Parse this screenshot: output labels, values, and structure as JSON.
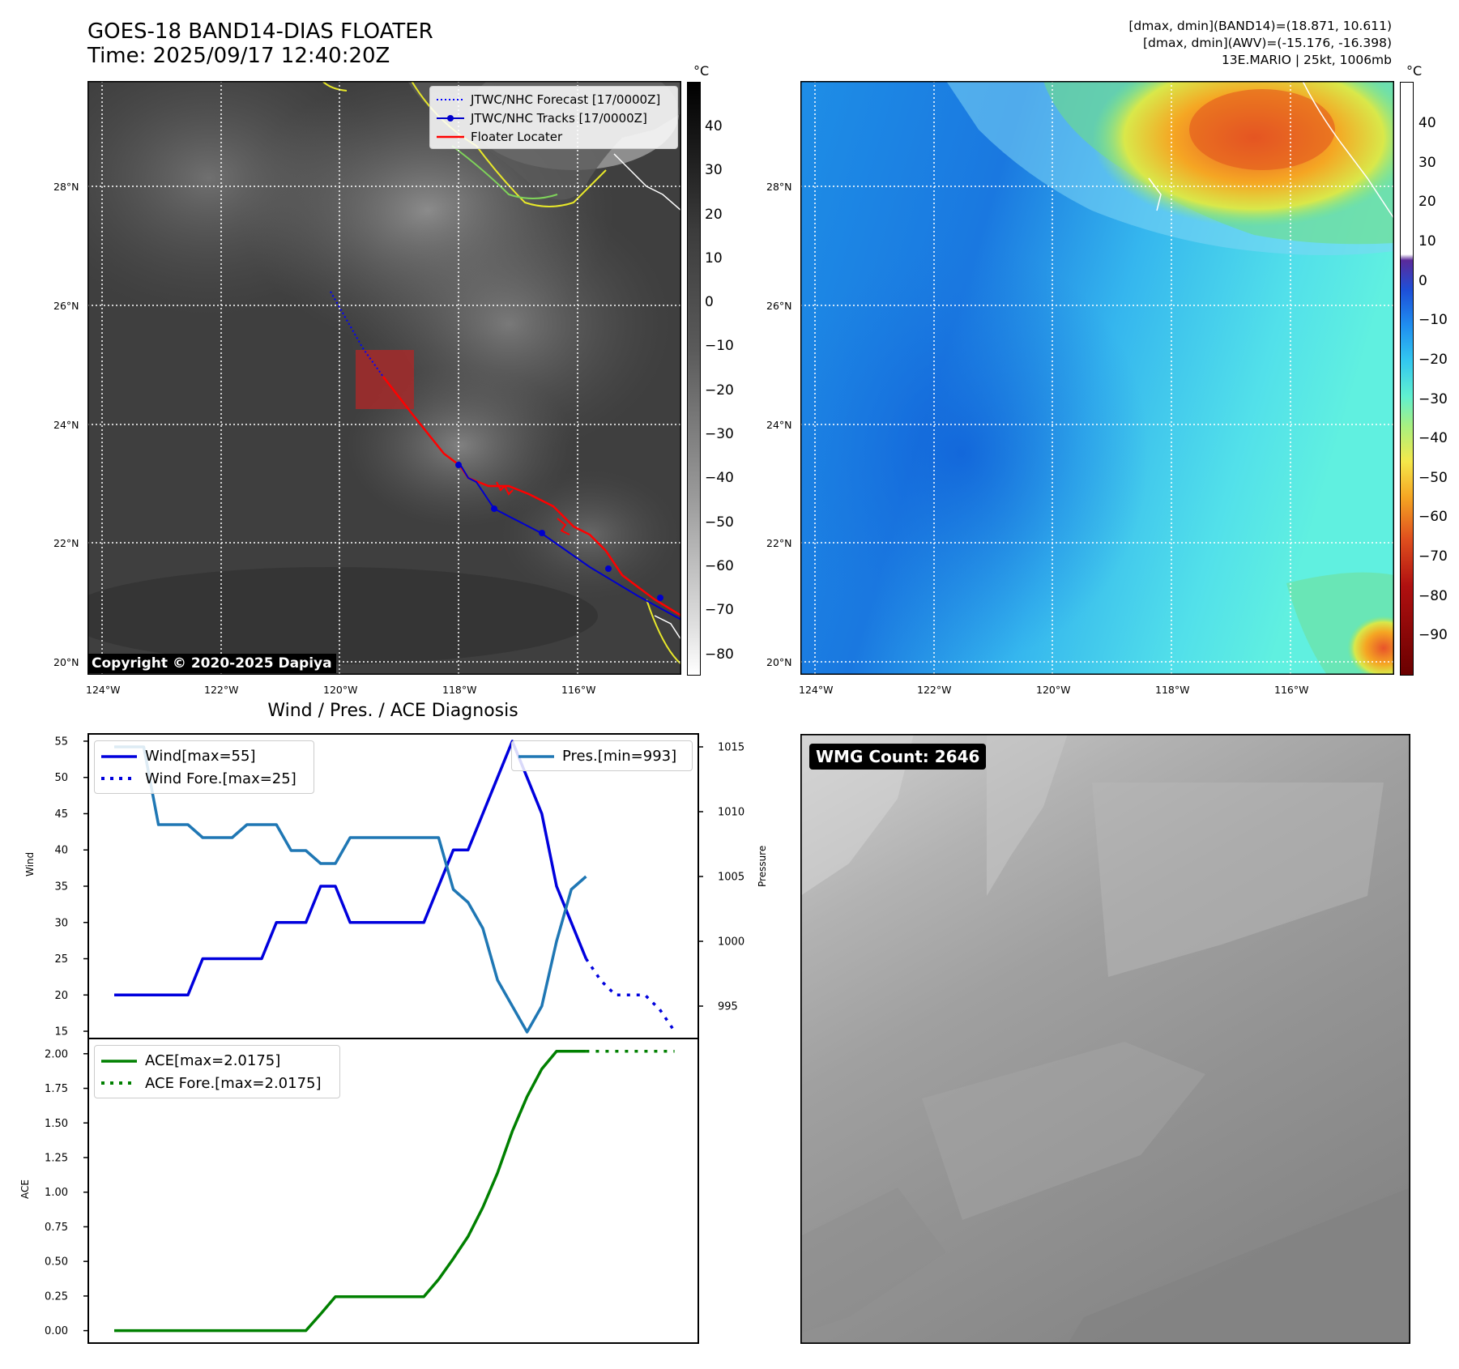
{
  "header": {
    "title_line1": "GOES-18 BAND14-DIAS FLOATER",
    "title_line2": "Time: 2025/09/17 12:40:20Z",
    "info_line1": "[dmax, dmin](BAND14)=(18.871, 10.611)",
    "info_line2": "[dmax, dmin](AWV)=(-15.176, -16.398)",
    "info_line3": "13E.MARIO | 25kt, 1006mb"
  },
  "map_axes": {
    "lat_labels": [
      "28°N",
      "26°N",
      "24°N",
      "22°N",
      "20°N"
    ],
    "lon_labels": [
      "124°W",
      "122°W",
      "120°W",
      "118°W",
      "116°W"
    ]
  },
  "colorbar_left": {
    "unit": "°C",
    "ticks": [
      "40",
      "30",
      "20",
      "10",
      "0",
      "−10",
      "−20",
      "−30",
      "−40",
      "−50",
      "−60",
      "−70",
      "−80"
    ]
  },
  "colorbar_right": {
    "unit": "°C",
    "ticks": [
      "40",
      "30",
      "20",
      "10",
      "0",
      "−10",
      "−20",
      "−30",
      "−40",
      "−50",
      "−60",
      "−70",
      "−80",
      "−90"
    ]
  },
  "map_legend": {
    "forecast": "JTWC/NHC Forecast [17/0000Z]",
    "tracks": "JTWC/NHC Tracks [17/0000Z]",
    "locater": "Floater Locater",
    "colors": {
      "forecast": "#0000ff",
      "tracks": "#0000cc",
      "locater": "#ff0000"
    }
  },
  "copyright": "Copyright © 2020-2025 Dapiya",
  "wmg_label": "WMG Count: 2646",
  "diag_title": "Wind / Pres. / ACE Diagnosis",
  "chart_data": [
    {
      "type": "line",
      "ylabel": "Wind",
      "ylabel2": "Pressure",
      "ylim": [
        14,
        56
      ],
      "ylim2": [
        992.5,
        1016
      ],
      "yticks": [
        15,
        20,
        25,
        30,
        35,
        40,
        45,
        50,
        55
      ],
      "yticks2": [
        995,
        1000,
        1005,
        1010,
        1015
      ],
      "legend": {
        "wind": "Wind[max=55]",
        "wind_fore": "Wind Fore.[max=25]",
        "pres": "Pres.[min=993]"
      },
      "colors": {
        "wind": "#0000dd",
        "pres": "#1f77b4"
      },
      "series": [
        {
          "name": "Wind[max=55]",
          "x": [
            0,
            1,
            2,
            3,
            4,
            5,
            6,
            7,
            8,
            9,
            10,
            11,
            12,
            13,
            14,
            15,
            16,
            17,
            18,
            19,
            20,
            21,
            22,
            23,
            24,
            25,
            26,
            27,
            28,
            29,
            30,
            31,
            32
          ],
          "values": [
            20,
            20,
            20,
            20,
            20,
            20,
            25,
            25,
            25,
            25,
            25,
            30,
            30,
            30,
            35,
            35,
            30,
            30,
            30,
            30,
            30,
            30,
            35,
            40,
            40,
            45,
            50,
            55,
            50,
            45,
            35,
            30,
            25
          ]
        },
        {
          "name": "Wind Fore.[max=25]",
          "x": [
            32,
            33,
            34,
            35,
            36,
            37,
            38
          ],
          "values": [
            25,
            22,
            20,
            20,
            20,
            18,
            15
          ]
        },
        {
          "name": "Pres.[min=993]",
          "x": [
            0,
            1,
            2,
            3,
            4,
            5,
            6,
            7,
            8,
            9,
            10,
            11,
            12,
            13,
            14,
            15,
            16,
            17,
            18,
            19,
            20,
            21,
            22,
            23,
            24,
            25,
            26,
            27,
            28,
            29,
            30,
            31,
            32
          ],
          "values": [
            1015,
            1015,
            1015,
            1009,
            1009,
            1009,
            1008,
            1008,
            1008,
            1009,
            1009,
            1009,
            1007,
            1007,
            1006,
            1006,
            1008,
            1008,
            1008,
            1008,
            1008,
            1008,
            1008,
            1004,
            1003,
            1001,
            997,
            995,
            993,
            995,
            1000,
            1004,
            1005
          ]
        }
      ]
    },
    {
      "type": "line",
      "ylabel": "ACE",
      "ylim": [
        -0.09,
        2.11
      ],
      "yticks": [
        "0.00",
        "0.25",
        "0.50",
        "0.75",
        "1.00",
        "1.25",
        "1.50",
        "1.75",
        "2.00"
      ],
      "legend": {
        "ace": "ACE[max=2.0175]",
        "ace_fore": "ACE Fore.[max=2.0175]"
      },
      "colors": {
        "ace": "#008000"
      },
      "series": [
        {
          "name": "ACE[max=2.0175]",
          "x": [
            0,
            1,
            2,
            3,
            4,
            5,
            6,
            7,
            8,
            9,
            10,
            11,
            12,
            13,
            14,
            15,
            16,
            17,
            18,
            19,
            20,
            21,
            22,
            23,
            24,
            25,
            26,
            27,
            28,
            29,
            30,
            31,
            32
          ],
          "values": [
            0,
            0,
            0,
            0,
            0,
            0,
            0,
            0,
            0,
            0,
            0,
            0,
            0,
            0,
            0.12,
            0.245,
            0.245,
            0.245,
            0.245,
            0.245,
            0.245,
            0.245,
            0.37,
            0.52,
            0.68,
            0.89,
            1.14,
            1.44,
            1.69,
            1.89,
            2.0175,
            2.0175,
            2.0175
          ]
        },
        {
          "name": "ACE Fore.[max=2.0175]",
          "x": [
            32,
            33,
            34,
            35,
            36,
            37,
            38
          ],
          "values": [
            2.0175,
            2.0175,
            2.0175,
            2.0175,
            2.0175,
            2.0175,
            2.0175
          ]
        }
      ]
    }
  ]
}
